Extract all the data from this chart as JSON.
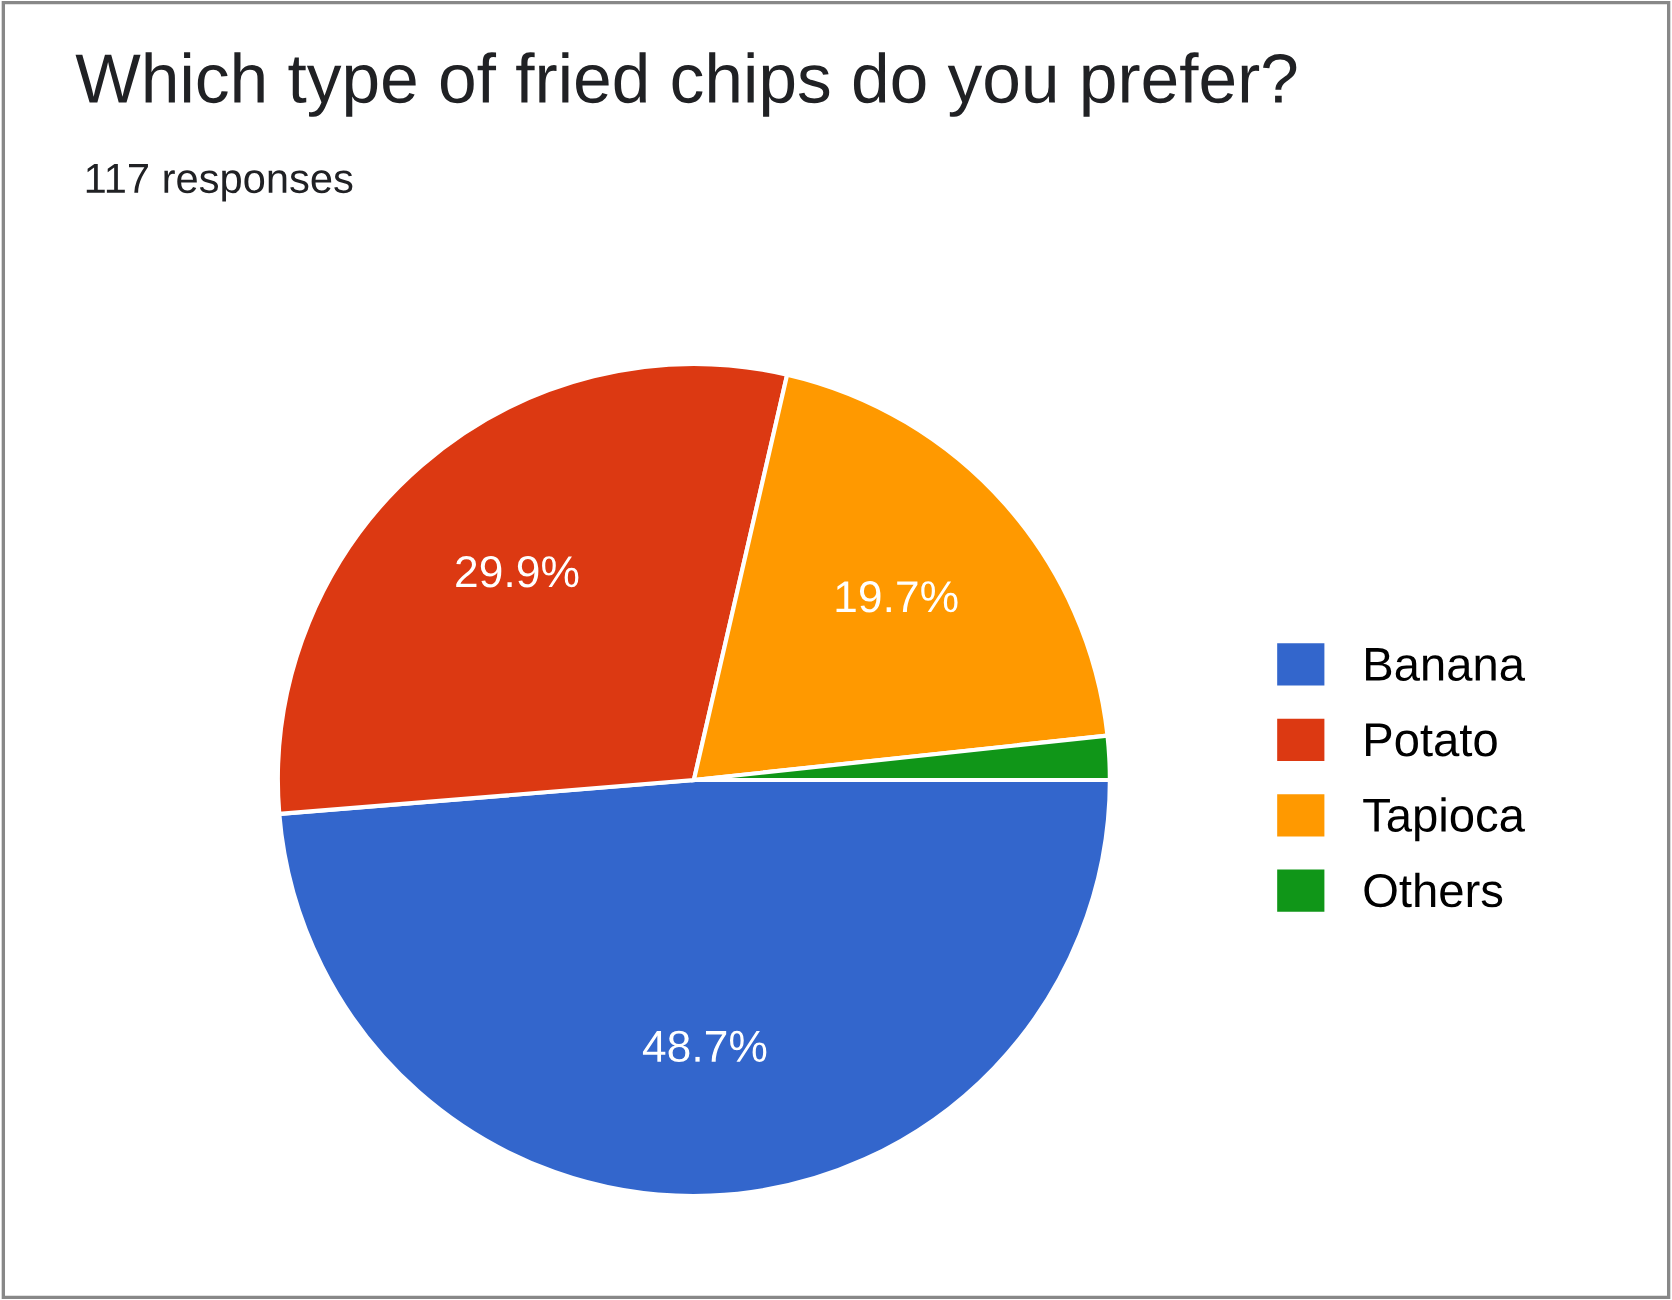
{
  "chart_data": {
    "type": "pie",
    "title": "Which type of fried chips do you prefer?",
    "subtitle": "117 responses",
    "categories": [
      "Banana",
      "Potato",
      "Tapioca",
      "Others"
    ],
    "values": [
      48.7,
      29.9,
      19.7,
      1.7
    ],
    "colors": [
      "#3366cc",
      "#dc3912",
      "#ff9900",
      "#109618"
    ],
    "value_labels": [
      "48.7%",
      "29.9%",
      "19.7%",
      null
    ],
    "legend": "right"
  }
}
